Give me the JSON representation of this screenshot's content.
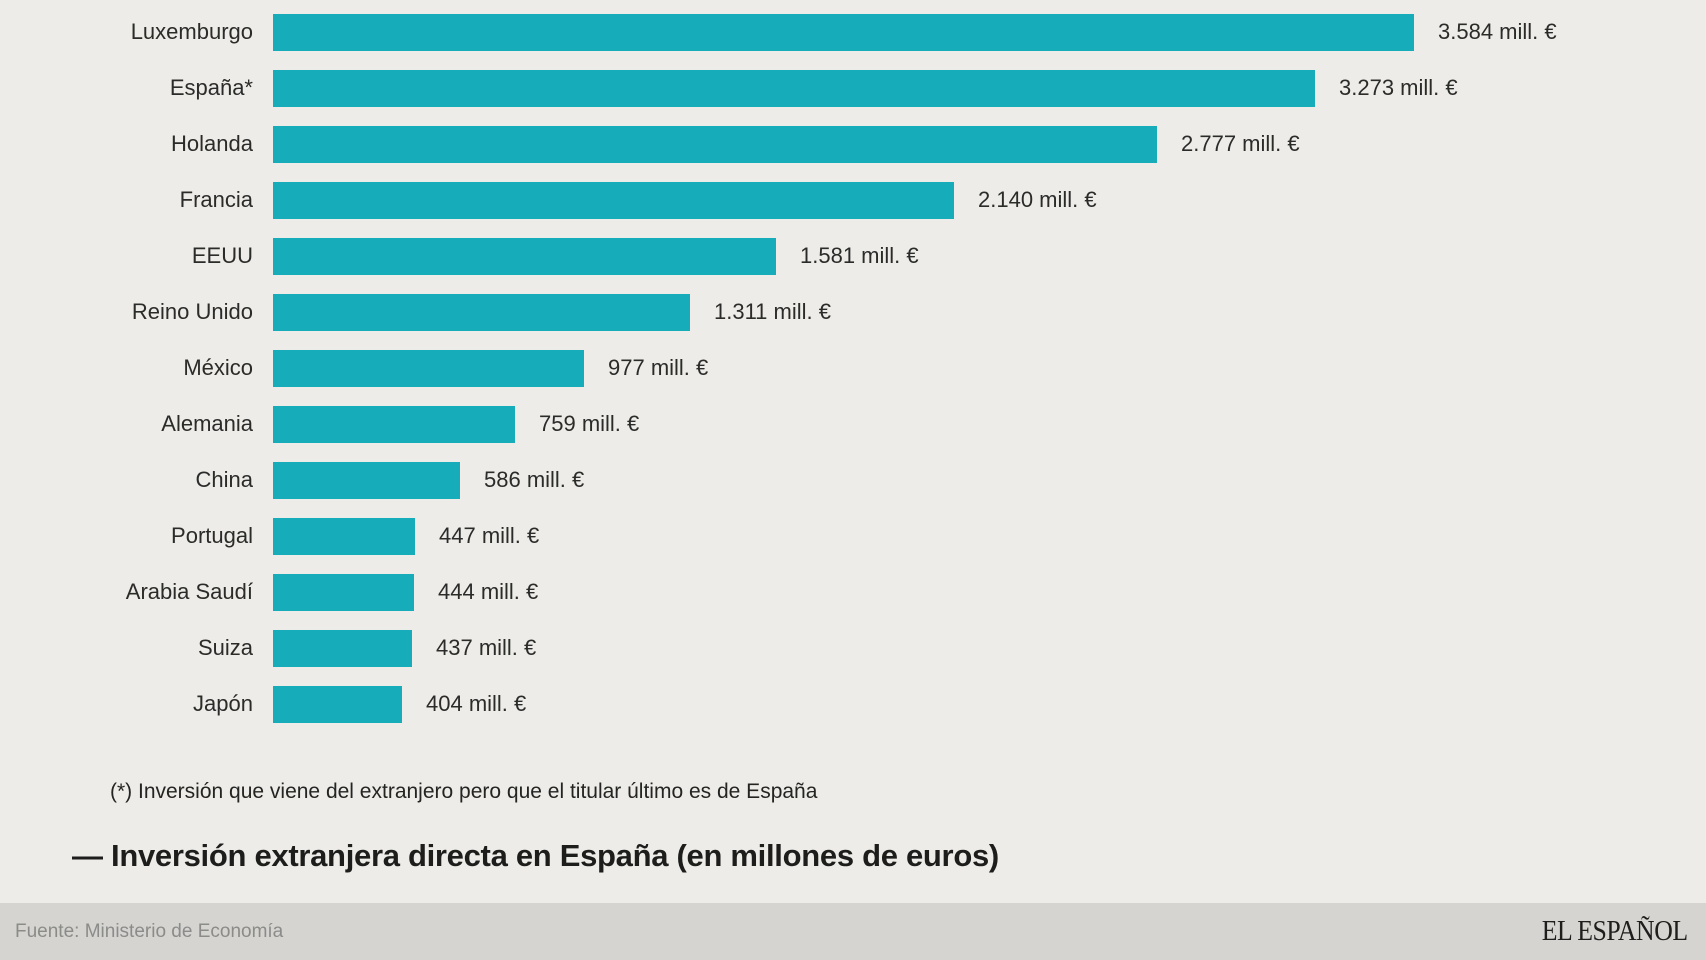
{
  "chart_data": {
    "type": "bar",
    "orientation": "horizontal",
    "title": "— Inversión extranjera directa en España (en millones de euros)",
    "footnote": "(*) Inversión que viene del extranjero pero que el titular último es de España",
    "unit": "mill. €",
    "max_value": 3584,
    "xlim": [
      0,
      3584
    ],
    "grid": false,
    "legend": false,
    "bar_color": "#16acba",
    "categories": [
      "Luxemburgo",
      "España*",
      "Holanda",
      "Francia",
      "EEUU",
      "Reino Unido",
      "México",
      "Alemania",
      "China",
      "Portugal",
      "Arabia Saudí",
      "Suiza",
      "Japón"
    ],
    "values": [
      3584,
      3273,
      2777,
      2140,
      1581,
      1311,
      977,
      759,
      586,
      447,
      444,
      437,
      404
    ],
    "value_labels": [
      "3.584 mill. €",
      "3.273 mill. €",
      "2.777 mill. €",
      "2.140 mill. €",
      "1.581 mill. €",
      "1.311 mill. €",
      "977 mill. €",
      "759 mill. €",
      "586 mill. €",
      "447 mill. €",
      "444 mill. €",
      "437 mill. €",
      "404 mill. €"
    ]
  },
  "footer": {
    "source": "Fuente: Ministerio de Economía",
    "brand": "EL ESPAÑOL"
  },
  "colors": {
    "background": "#edece9",
    "bar": "#16acba",
    "footer_band": "#d5d4d1",
    "text_dark": "#2b2b29",
    "footer_text": "#8b8b89"
  }
}
